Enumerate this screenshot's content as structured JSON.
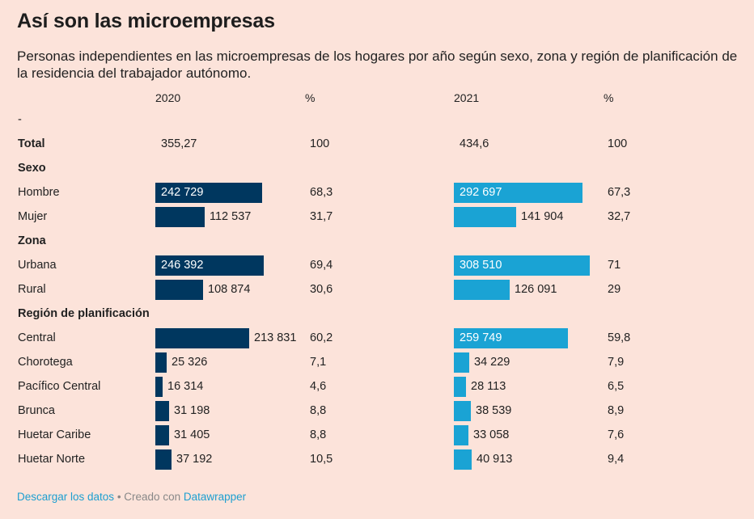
{
  "title": "Así son las microempresas",
  "subtitle": "Personas independientes en las microempresas de los hogares por año según sexo, zona y región de planificación de la residencia del trabajador autónomo.",
  "columns": {
    "y2020": "2020",
    "pct2020": "%",
    "y2021": "2021",
    "pct2021": "%"
  },
  "footer": {
    "download": "Descargar los datos",
    "separator": " • Creado con ",
    "tool": "Datawrapper"
  },
  "colors": {
    "bar_2020": "#00375f",
    "bar_2021": "#1aa3d4",
    "background": "#fce3da"
  },
  "chart_data": {
    "type": "table",
    "scale_max": 308510,
    "rows": [
      {
        "label": "-",
        "kind": "text"
      },
      {
        "label": "Total",
        "kind": "total",
        "v2020": "355,27",
        "p2020": "100",
        "v2021": "434,6",
        "p2021": "100"
      },
      {
        "label": "Sexo",
        "kind": "header"
      },
      {
        "label": "Hombre",
        "kind": "bar",
        "n2020": 242729,
        "v2020": "242 729",
        "p2020": "68,3",
        "n2021": 292697,
        "v2021": "292 697",
        "p2021": "67,3"
      },
      {
        "label": "Mujer",
        "kind": "bar",
        "n2020": 112537,
        "v2020": "112 537",
        "p2020": "31,7",
        "n2021": 141904,
        "v2021": "141 904",
        "p2021": "32,7"
      },
      {
        "label": "Zona",
        "kind": "header"
      },
      {
        "label": "Urbana",
        "kind": "bar",
        "n2020": 246392,
        "v2020": "246 392",
        "p2020": "69,4",
        "n2021": 308510,
        "v2021": "308 510",
        "p2021": "71"
      },
      {
        "label": "Rural",
        "kind": "bar",
        "n2020": 108874,
        "v2020": "108 874",
        "p2020": "30,6",
        "n2021": 126091,
        "v2021": "126 091",
        "p2021": "29"
      },
      {
        "label": "Región de planificación",
        "kind": "header"
      },
      {
        "label": "Central",
        "kind": "bar",
        "n2020": 213831,
        "v2020": "213 831",
        "p2020": "60,2",
        "n2021": 259749,
        "v2021": "259 749",
        "p2021": "59,8"
      },
      {
        "label": "Chorotega",
        "kind": "bar",
        "n2020": 25326,
        "v2020": "25 326",
        "p2020": "7,1",
        "n2021": 34229,
        "v2021": "34 229",
        "p2021": "7,9"
      },
      {
        "label": "Pacífico Central",
        "kind": "bar",
        "n2020": 16314,
        "v2020": "16 314",
        "p2020": "4,6",
        "n2021": 28113,
        "v2021": "28 113",
        "p2021": "6,5"
      },
      {
        "label": "Brunca",
        "kind": "bar",
        "n2020": 31198,
        "v2020": "31 198",
        "p2020": "8,8",
        "n2021": 38539,
        "v2021": "38 539",
        "p2021": "8,9"
      },
      {
        "label": "Huetar Caribe",
        "kind": "bar",
        "n2020": 31405,
        "v2020": "31 405",
        "p2020": "8,8",
        "n2021": 33058,
        "v2021": "33 058",
        "p2021": "7,6"
      },
      {
        "label": "Huetar Norte",
        "kind": "bar",
        "n2020": 37192,
        "v2020": "37 192",
        "p2020": "10,5",
        "n2021": 40913,
        "v2021": "40 913",
        "p2021": "9,4"
      }
    ]
  }
}
